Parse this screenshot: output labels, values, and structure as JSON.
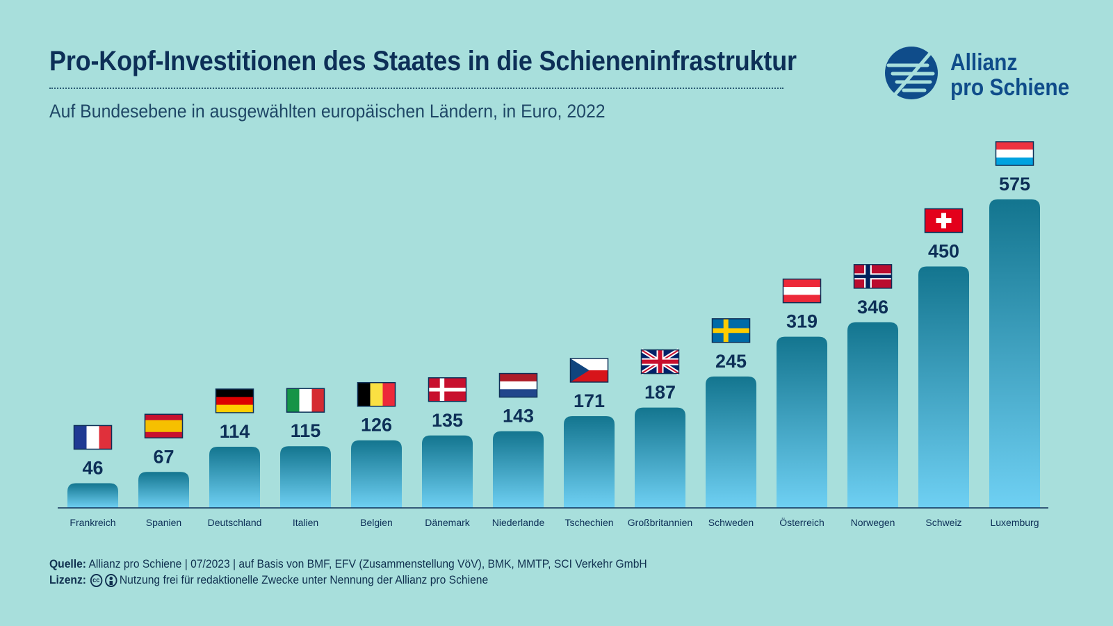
{
  "title": "Pro-Kopf-Investitionen des Staates in die Schieneninfrastruktur",
  "subtitle": "Auf Bundesebene in ausgewählten europäischen Ländern, in Euro, 2022",
  "logo": {
    "line1": "Allianz",
    "line2": "pro Schiene",
    "icon": "allianz-pro-schiene-logo"
  },
  "colors": {
    "background": "#a8dfdc",
    "bar_top": "#13758f",
    "bar_bottom": "#6fd0f3",
    "title": "#0d2f57"
  },
  "chart_data": {
    "type": "bar",
    "categories": [
      "Frankreich",
      "Spanien",
      "Deutschland",
      "Italien",
      "Belgien",
      "Dänemark",
      "Niederlande",
      "Tschechien",
      "Großbritannien",
      "Schweden",
      "Österreich",
      "Norwegen",
      "Schweiz",
      "Luxemburg"
    ],
    "values": [
      46,
      67,
      114,
      115,
      126,
      135,
      143,
      171,
      187,
      245,
      319,
      346,
      450,
      575
    ],
    "flags": [
      "fr",
      "es",
      "de",
      "it",
      "be",
      "dk",
      "nl",
      "cz",
      "gb",
      "se",
      "at",
      "no",
      "ch",
      "lu"
    ],
    "title": "Pro-Kopf-Investitionen des Staates in die Schieneninfrastruktur",
    "xlabel": "",
    "ylabel": "",
    "ylim": [
      0,
      575
    ],
    "grid": false,
    "legend": "none"
  },
  "footer": {
    "source_label": "Quelle:",
    "source_text": " Allianz pro Schiene | 07/2023 | auf Basis von BMF, EFV (Zusammenstellung VöV), BMK, MMTP, SCI Verkehr GmbH",
    "license_label": "Lizenz:",
    "license_text": "Nutzung frei für redaktionelle Zwecke unter Nennung der Allianz pro Schiene",
    "cc_text": "cc"
  }
}
